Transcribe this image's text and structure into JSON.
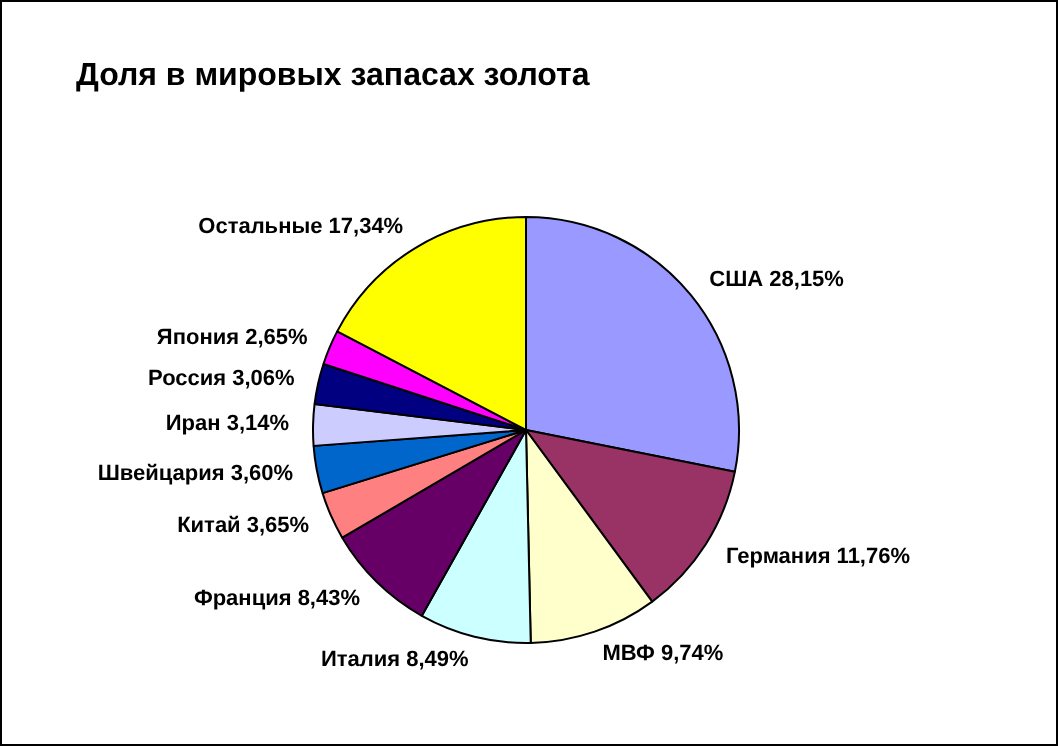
{
  "chart_data": {
    "type": "pie",
    "title": "Доля в мировых запасах золота",
    "categories": [
      "США",
      "Германия",
      "МВФ",
      "Италия",
      "Франция",
      "Китай",
      "Швейцария",
      "Иран",
      "Россия",
      "Япония",
      "Остальные"
    ],
    "values": [
      28.15,
      11.76,
      9.74,
      8.49,
      8.43,
      3.65,
      3.6,
      3.14,
      3.06,
      2.65,
      17.34
    ],
    "value_labels": [
      "28,15%",
      "11,76%",
      "9,74%",
      "8,49%",
      "8,43%",
      "3,65%",
      "3,60%",
      "3,14%",
      "3,06%",
      "2,65%",
      "17,34%"
    ],
    "colors": [
      "#9999ff",
      "#993366",
      "#ffffcc",
      "#ccffff",
      "#660066",
      "#ff8080",
      "#0066cc",
      "#ccccff",
      "#000080",
      "#ff00ff",
      "#ffff00"
    ],
    "legend": false
  }
}
